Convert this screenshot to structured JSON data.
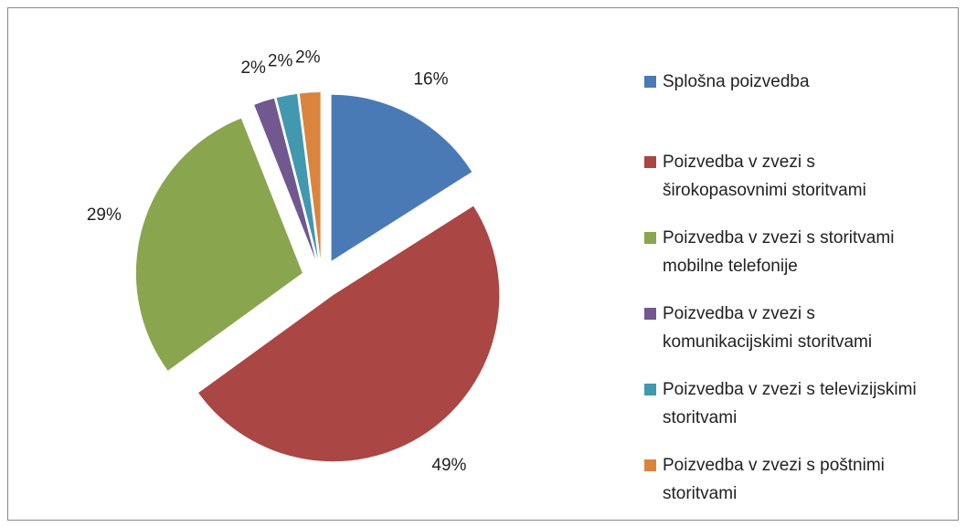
{
  "chart_data": {
    "type": "pie",
    "categories": [
      "Splošna poizvedba",
      "Poizvedba v zvezi s širokopasovnimi storitvami",
      "Poizvedba v zvezi s storitvami mobilne telefonije",
      "Poizvedba v zvezi s komunikacijskimi storitvami",
      "Poizvedba v zvezi s televizijskimi storitvami",
      "Poizvedba v zvezi s poštnimi storitvami"
    ],
    "values": [
      16,
      49,
      29,
      2,
      2,
      2
    ],
    "value_labels": [
      "16%",
      "49%",
      "29%",
      "2%",
      "2%",
      "2%"
    ],
    "colors": [
      "#4a7ab5",
      "#aa4643",
      "#89a54e",
      "#71588f",
      "#4198af",
      "#db843d"
    ],
    "legend": "right"
  }
}
